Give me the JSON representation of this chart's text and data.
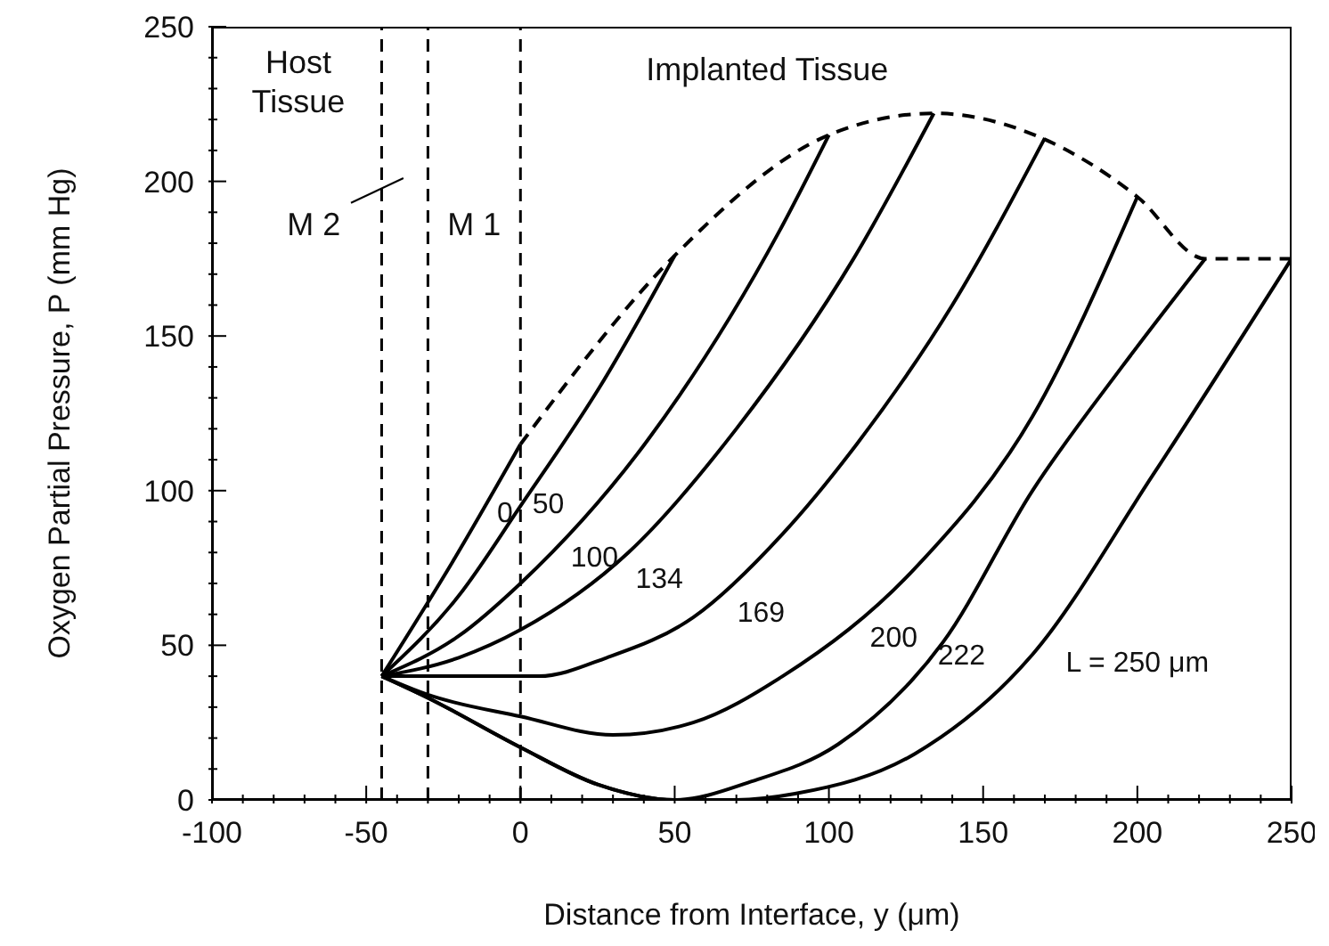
{
  "chart_data": {
    "type": "line",
    "xlabel": "Distance from Interface, y (μm)",
    "ylabel": "Oxygen Partial Pressure, P (mm Hg)",
    "xlim": [
      -100,
      250
    ],
    "ylim": [
      0,
      250
    ],
    "xticks": [
      -100,
      {
        "value": -90,
        "label": null
      },
      {
        "value": -80,
        "label": null
      },
      {
        "value": -70,
        "label": null
      },
      {
        "value": -60,
        "label": null
      },
      -50,
      {
        "value": -40,
        "label": null
      },
      {
        "value": -30,
        "label": null
      },
      {
        "value": -20,
        "label": null
      },
      {
        "value": -10,
        "label": null
      },
      0,
      {
        "value": 10,
        "label": null
      },
      {
        "value": 20,
        "label": null
      },
      {
        "value": 30,
        "label": null
      },
      {
        "value": 40,
        "label": null
      },
      50,
      {
        "value": 60,
        "label": null
      },
      {
        "value": 70,
        "label": null
      },
      {
        "value": 80,
        "label": null
      },
      {
        "value": 90,
        "label": null
      },
      100,
      {
        "value": 110,
        "label": null
      },
      {
        "value": 120,
        "label": null
      },
      {
        "value": 130,
        "label": null
      },
      {
        "value": 140,
        "label": null
      },
      150,
      {
        "value": 160,
        "label": null
      },
      {
        "value": 170,
        "label": null
      },
      {
        "value": 180,
        "label": null
      },
      {
        "value": 190,
        "label": null
      },
      200,
      {
        "value": 210,
        "label": null
      },
      {
        "value": 220,
        "label": null
      },
      {
        "value": 230,
        "label": null
      },
      {
        "value": 240,
        "label": null
      },
      250
    ],
    "yticks": [
      0,
      {
        "value": 10,
        "label": null
      },
      {
        "value": 20,
        "label": null
      },
      {
        "value": 30,
        "label": null
      },
      {
        "value": 40,
        "label": null
      },
      50,
      {
        "value": 60,
        "label": null
      },
      {
        "value": 70,
        "label": null
      },
      {
        "value": 80,
        "label": null
      },
      {
        "value": 90,
        "label": null
      },
      100,
      {
        "value": 110,
        "label": null
      },
      {
        "value": 120,
        "label": null
      },
      {
        "value": 130,
        "label": null
      },
      {
        "value": 140,
        "label": null
      },
      150,
      {
        "value": 160,
        "label": null
      },
      {
        "value": 170,
        "label": null
      },
      {
        "value": 180,
        "label": null
      },
      {
        "value": 190,
        "label": null
      },
      200,
      {
        "value": 210,
        "label": null
      },
      {
        "value": 220,
        "label": null
      },
      {
        "value": 230,
        "label": null
      },
      {
        "value": 240,
        "label": null
      },
      250
    ],
    "marker": "none",
    "line_style": "solid",
    "series": [
      {
        "name": "0",
        "color": "#000000",
        "x": [
          -45,
          -22,
          0
        ],
        "values": [
          40,
          77,
          115
        ]
      },
      {
        "name": "50",
        "color": "#000000",
        "x": [
          -45,
          -20,
          0,
          26,
          50
        ],
        "values": [
          40,
          66,
          95,
          134,
          176
        ]
      },
      {
        "name": "100",
        "color": "#000000",
        "x": [
          -45,
          -20,
          0,
          41,
          84,
          100
        ],
        "values": [
          40,
          53,
          70,
          116,
          184,
          215
        ]
      },
      {
        "name": "134",
        "color": "#000000",
        "x": [
          -45,
          -20,
          0,
          35,
          70,
          108,
          134
        ],
        "values": [
          40,
          46,
          55,
          80,
          120,
          175,
          222
        ]
      },
      {
        "name": "169",
        "color": "#000000",
        "x": [
          -45,
          6,
          28,
          56,
          85,
          109,
          140,
          170
        ],
        "values": [
          40,
          40,
          46,
          59,
          86,
          115,
          160,
          214
        ]
      },
      {
        "name": "200",
        "color": "#000000",
        "x": [
          -45,
          -30,
          0,
          30,
          56,
          85,
          128,
          166,
          200
        ],
        "values": [
          40,
          34,
          27,
          21,
          25,
          40,
          75,
          124,
          195
        ]
      },
      {
        "name": "222",
        "color": "#000000",
        "x": [
          -45,
          -30,
          0,
          25,
          50,
          75,
          103,
          137,
          166,
          195,
          222
        ],
        "values": [
          40,
          33,
          17,
          5,
          0,
          6,
          18,
          51,
          100,
          140,
          175
        ]
      },
      {
        "name": "L = 250 μm",
        "color": "#000000",
        "x": [
          -45,
          -30,
          0,
          25,
          50,
          70,
          89,
          128,
          166,
          205,
          250
        ],
        "values": [
          40,
          33,
          17,
          5,
          0,
          0,
          2,
          15,
          47,
          105,
          175
        ]
      },
      {
        "color": "#000000",
        "line_style": "dashed",
        "x": [
          0,
          50,
          100,
          134,
          169,
          200,
          222,
          250
        ],
        "values": [
          115,
          176,
          215,
          222,
          214,
          195,
          175,
          175
        ]
      }
    ],
    "ref_lines": [
      {
        "axis": "x",
        "value": -45,
        "line_style": "dashed",
        "color": "#000000"
      },
      {
        "axis": "x",
        "value": -30,
        "line_style": "dashed",
        "color": "#000000"
      },
      {
        "axis": "x",
        "value": 0,
        "line_style": "dashed",
        "color": "#000000"
      }
    ],
    "annotations": [
      "Host Tissue",
      "Implanted Tissue",
      "M 2",
      "M 1"
    ]
  }
}
